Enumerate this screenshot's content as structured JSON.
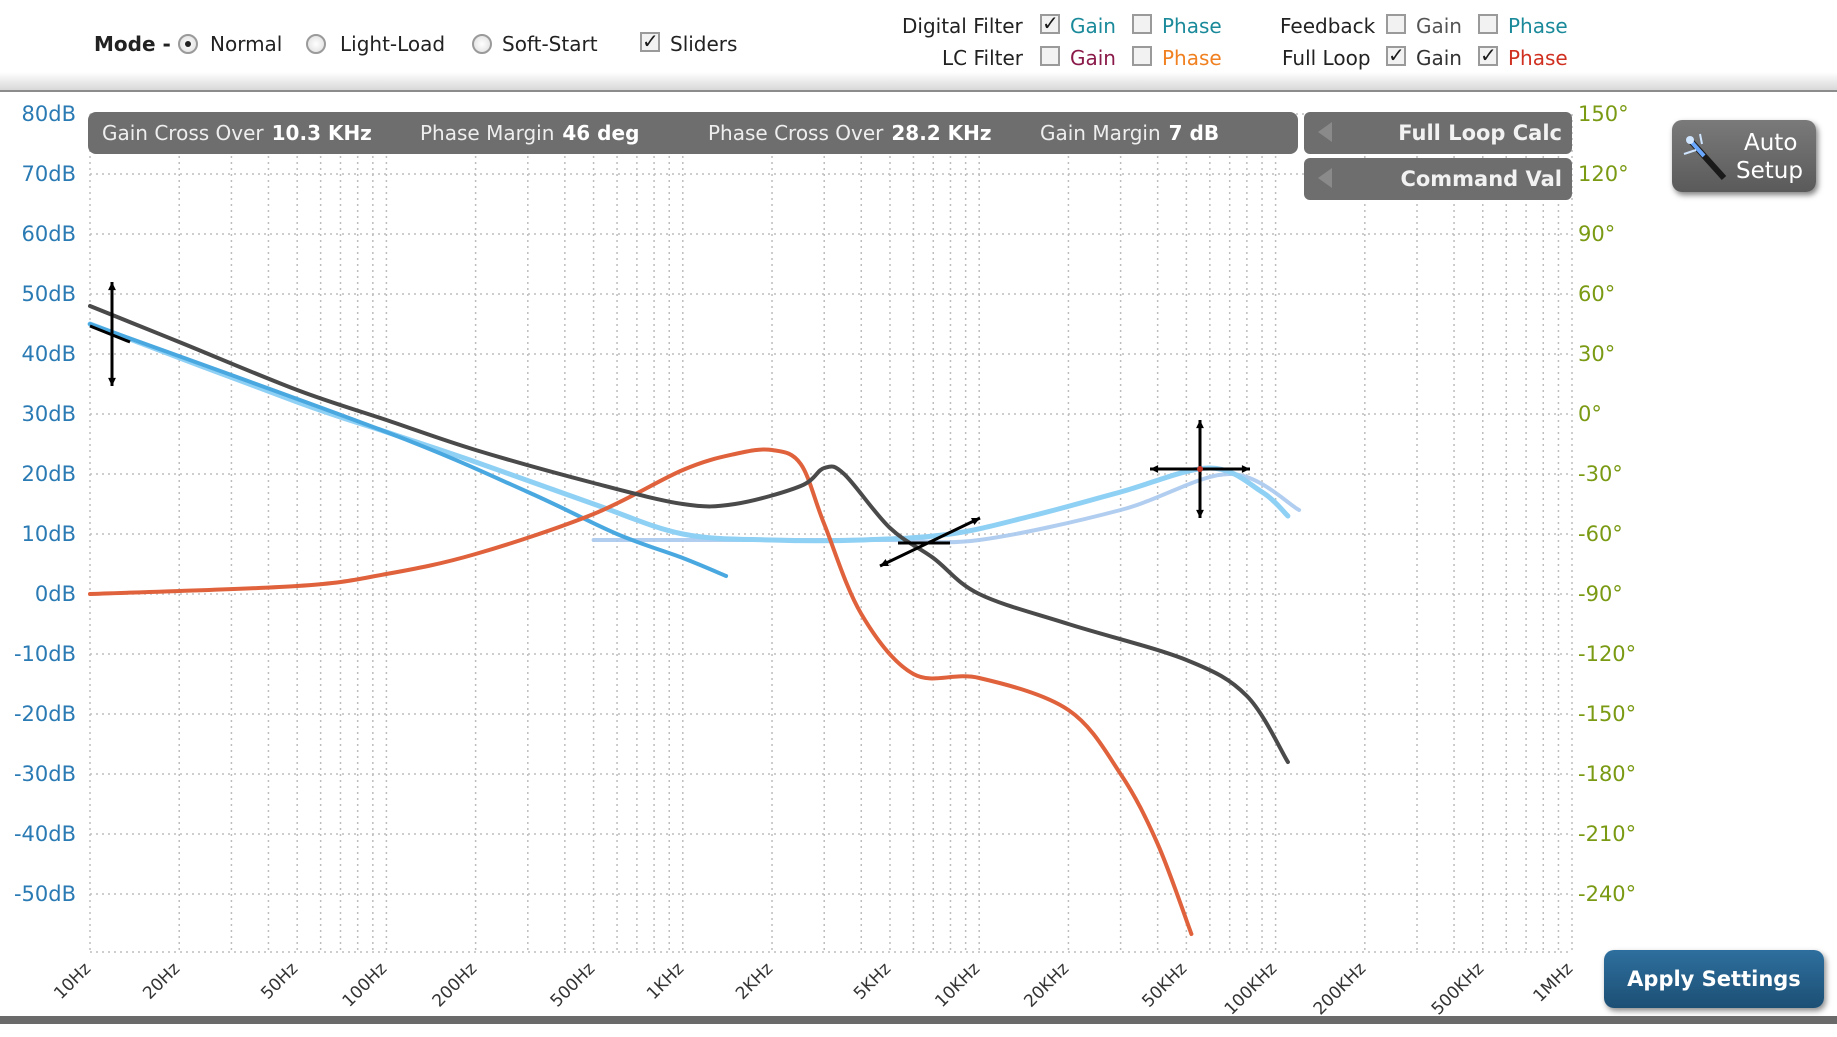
{
  "toolbar": {
    "mode_label": "Mode -",
    "modes": [
      {
        "label": "Normal",
        "selected": true
      },
      {
        "label": "Light-Load",
        "selected": false
      },
      {
        "label": "Soft-Start",
        "selected": false
      }
    ],
    "sliders": {
      "label": "Sliders",
      "checked": true
    },
    "filters": {
      "digital_filter": {
        "label": "Digital Filter",
        "gain_label": "Gain",
        "gain_checked": true,
        "phase_label": "Phase",
        "phase_checked": false
      },
      "lc_filter": {
        "label": "LC Filter",
        "gain_label": "Gain",
        "gain_checked": false,
        "phase_label": "Phase",
        "phase_checked": false
      },
      "feedback": {
        "label": "Feedback",
        "gain_label": "Gain",
        "gain_checked": false,
        "phase_label": "Phase",
        "phase_checked": false
      },
      "full_loop": {
        "label": "Full Loop",
        "gain_label": "Gain",
        "gain_checked": true,
        "phase_label": "Phase",
        "phase_checked": true
      }
    },
    "check_mark": "✓"
  },
  "info_bar": {
    "gain_cross_label": "Gain Cross Over",
    "gain_cross_value": "10.3 KHz",
    "phase_margin_label": "Phase Margin",
    "phase_margin_value": "46 deg",
    "phase_cross_label": "Phase Cross Over",
    "phase_cross_value": "28.2 KHz",
    "gain_margin_label": "Gain Margin",
    "gain_margin_value": "7 dB"
  },
  "buttons": {
    "full_loop_calc": "Full Loop Calc",
    "command_val": "Command Val",
    "auto_setup_line1": "Auto",
    "auto_setup_line2": "Setup",
    "apply_settings": "Apply Settings"
  },
  "colors": {
    "gain_axis": "#2a7ab4",
    "phase_axis": "#7a9a14",
    "digital_gain": "#8fd0f5",
    "feedback_gain": "#4aa8e0",
    "full_loop_gain": "#4a4a4a",
    "full_loop_phase": "#e0623c",
    "checkbox_gain_digital": "#1a8a9a",
    "checkbox_gain_lc": "#8a1a4a",
    "checkbox_phase_digital": "#1a8a9a",
    "checkbox_phase_lc": "#f08020",
    "checkbox_gain_full": "#333333",
    "checkbox_phase_full": "#d03020",
    "checkbox_phase_feedback": "#1a8a9a"
  },
  "chart_data": {
    "type": "line",
    "x_scale": "log",
    "x_ticks": [
      "10Hz",
      "20Hz",
      "50Hz",
      "100Hz",
      "200Hz",
      "500Hz",
      "1KHz",
      "2KHz",
      "5KHz",
      "10KHz",
      "20KHz",
      "50KHz",
      "100KHz",
      "200KHz",
      "500KHz",
      "1MHz"
    ],
    "x_tick_values": [
      10,
      20,
      50,
      100,
      200,
      500,
      1000,
      2000,
      5000,
      10000,
      20000,
      50000,
      100000,
      200000,
      500000,
      1000000
    ],
    "y_left_ticks": [
      "80dB",
      "70dB",
      "60dB",
      "50dB",
      "40dB",
      "30dB",
      "20dB",
      "10dB",
      "0dB",
      "-10dB",
      "-20dB",
      "-30dB",
      "-40dB",
      "-50dB"
    ],
    "y_left_range": [
      -50,
      80
    ],
    "y_right_ticks": [
      "150°",
      "120°",
      "90°",
      "60°",
      "30°",
      "0°",
      "-30°",
      "-60°",
      "-90°",
      "-120°",
      "-150°",
      "-180°",
      "-210°",
      "-240°"
    ],
    "y_right_range": [
      -240,
      150
    ],
    "grid": true,
    "series": [
      {
        "id": "full_loop_gain_curve",
        "axis": "left",
        "color": "#4a4a4a",
        "x": [
          10,
          20,
          50,
          100,
          200,
          500,
          1000,
          1500,
          2500,
          3000,
          3500,
          5000,
          7000,
          10000,
          20000,
          50000,
          80000,
          110000
        ],
        "y": [
          48,
          42,
          34,
          29,
          24,
          18.5,
          15,
          15,
          18,
          21,
          20,
          11,
          6,
          0,
          -5,
          -11,
          -17,
          -28
        ]
      },
      {
        "id": "full_loop_phase_curve",
        "axis": "right",
        "color": "#e0623c",
        "x": [
          10,
          50,
          100,
          200,
          500,
          1000,
          1500,
          2000,
          2500,
          3000,
          4000,
          6000,
          10000,
          20000,
          30000,
          40000,
          52000
        ],
        "y": [
          -90,
          -86,
          -80,
          -70,
          -50,
          -28,
          -20,
          -18,
          -25,
          -55,
          -100,
          -130,
          -132,
          -148,
          -180,
          -215,
          -260
        ]
      },
      {
        "id": "digital_filter_gain_curve",
        "axis": "left",
        "color": "#8fd0f5",
        "x": [
          10,
          50,
          100,
          200,
          500,
          1000,
          2000,
          4000,
          8000,
          15000,
          30000,
          60000,
          90000,
          110000
        ],
        "y": [
          45,
          32,
          27,
          22,
          15,
          10,
          9,
          9,
          10,
          13,
          17,
          21,
          17,
          13
        ]
      },
      {
        "id": "feedback_gain_curve",
        "axis": "left",
        "color": "#4aa8e0",
        "x": [
          10,
          100,
          300,
          600,
          1000,
          1400
        ],
        "y": [
          45,
          27,
          17,
          10,
          6,
          3
        ]
      },
      {
        "id": "asymptote_curve",
        "axis": "left",
        "color": "#a9c9ee",
        "x": [
          500,
          2000,
          5000,
          10000,
          30000,
          70000,
          120000
        ],
        "y": [
          9,
          9,
          9,
          9,
          14,
          20,
          14
        ]
      }
    ]
  }
}
